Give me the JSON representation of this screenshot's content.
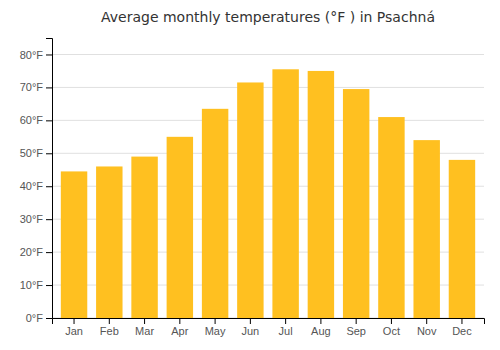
{
  "chart_data": {
    "type": "bar",
    "title": "Average monthly temperatures (°F ) in Psachná",
    "categories": [
      "Jan",
      "Feb",
      "Mar",
      "Apr",
      "May",
      "Jun",
      "Jul",
      "Aug",
      "Sep",
      "Oct",
      "Nov",
      "Dec"
    ],
    "values": [
      44.5,
      46.0,
      49.0,
      55.0,
      63.5,
      71.5,
      75.5,
      75.0,
      69.5,
      61.0,
      54.0,
      48.0
    ],
    "color": "#FFC020",
    "ylim": [
      0,
      85
    ],
    "yticks": [
      {
        "value": 0,
        "label": "0°F"
      },
      {
        "value": 10,
        "label": "10°F"
      },
      {
        "value": 20,
        "label": "20°F"
      },
      {
        "value": 30,
        "label": "30°F"
      },
      {
        "value": 40,
        "label": "40°F"
      },
      {
        "value": 50,
        "label": "50°F"
      },
      {
        "value": 60,
        "label": "60°F"
      },
      {
        "value": 70,
        "label": "70°F"
      },
      {
        "value": 80,
        "label": "80°F"
      }
    ],
    "grid": true
  }
}
